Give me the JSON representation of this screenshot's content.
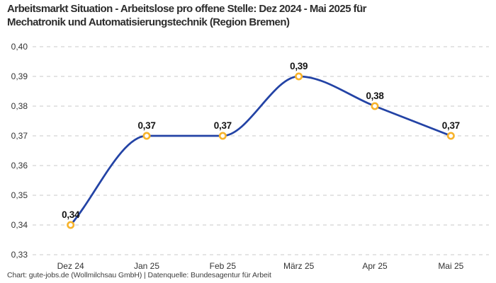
{
  "header": {
    "title_lines": [
      "Arbeitsmarkt Situation - Arbeitslose pro offene Stelle: Dez 2024 - Mai 2025 für",
      "Mechatronik und Automatisierungstechnik (Region Bremen)"
    ]
  },
  "chart_data": {
    "type": "line",
    "title": "Arbeitsmarkt Situation - Arbeitslose pro offene Stelle: Dez 2024 - Mai 2025 für Mechatronik und Automatisierungstechnik (Region Bremen)",
    "categories": [
      "Dez 24",
      "Jan 25",
      "Feb 25",
      "März 25",
      "Apr 25",
      "Mai 25"
    ],
    "values": [
      0.34,
      0.37,
      0.37,
      0.39,
      0.38,
      0.37
    ],
    "point_labels": [
      "0,34",
      "0,37",
      "0,37",
      "0,39",
      "0,38",
      "0,37"
    ],
    "ylim": [
      0.33,
      0.4
    ],
    "yticks": [
      0.33,
      0.34,
      0.35,
      0.36,
      0.37,
      0.38,
      0.39,
      0.4
    ],
    "ytick_labels": [
      "0,33",
      "0,34",
      "0,35",
      "0,36",
      "0,37",
      "0,38",
      "0,39",
      "0,40"
    ],
    "xlabel": "",
    "ylabel": "",
    "grid": "horizontal-dashed",
    "legend": "none",
    "curve": "monotone",
    "colors": {
      "line": "#2343a5",
      "marker_ring": "#f7b32b",
      "marker_fill": "#ffffff",
      "gridline": "#c9c9c9",
      "tick_label": "#333333",
      "point_label": "#141414"
    }
  },
  "footer": {
    "text": "Chart: gute-jobs.de (Wollmilchsau GmbH) | Datenquelle: Bundesagentur für Arbeit"
  }
}
